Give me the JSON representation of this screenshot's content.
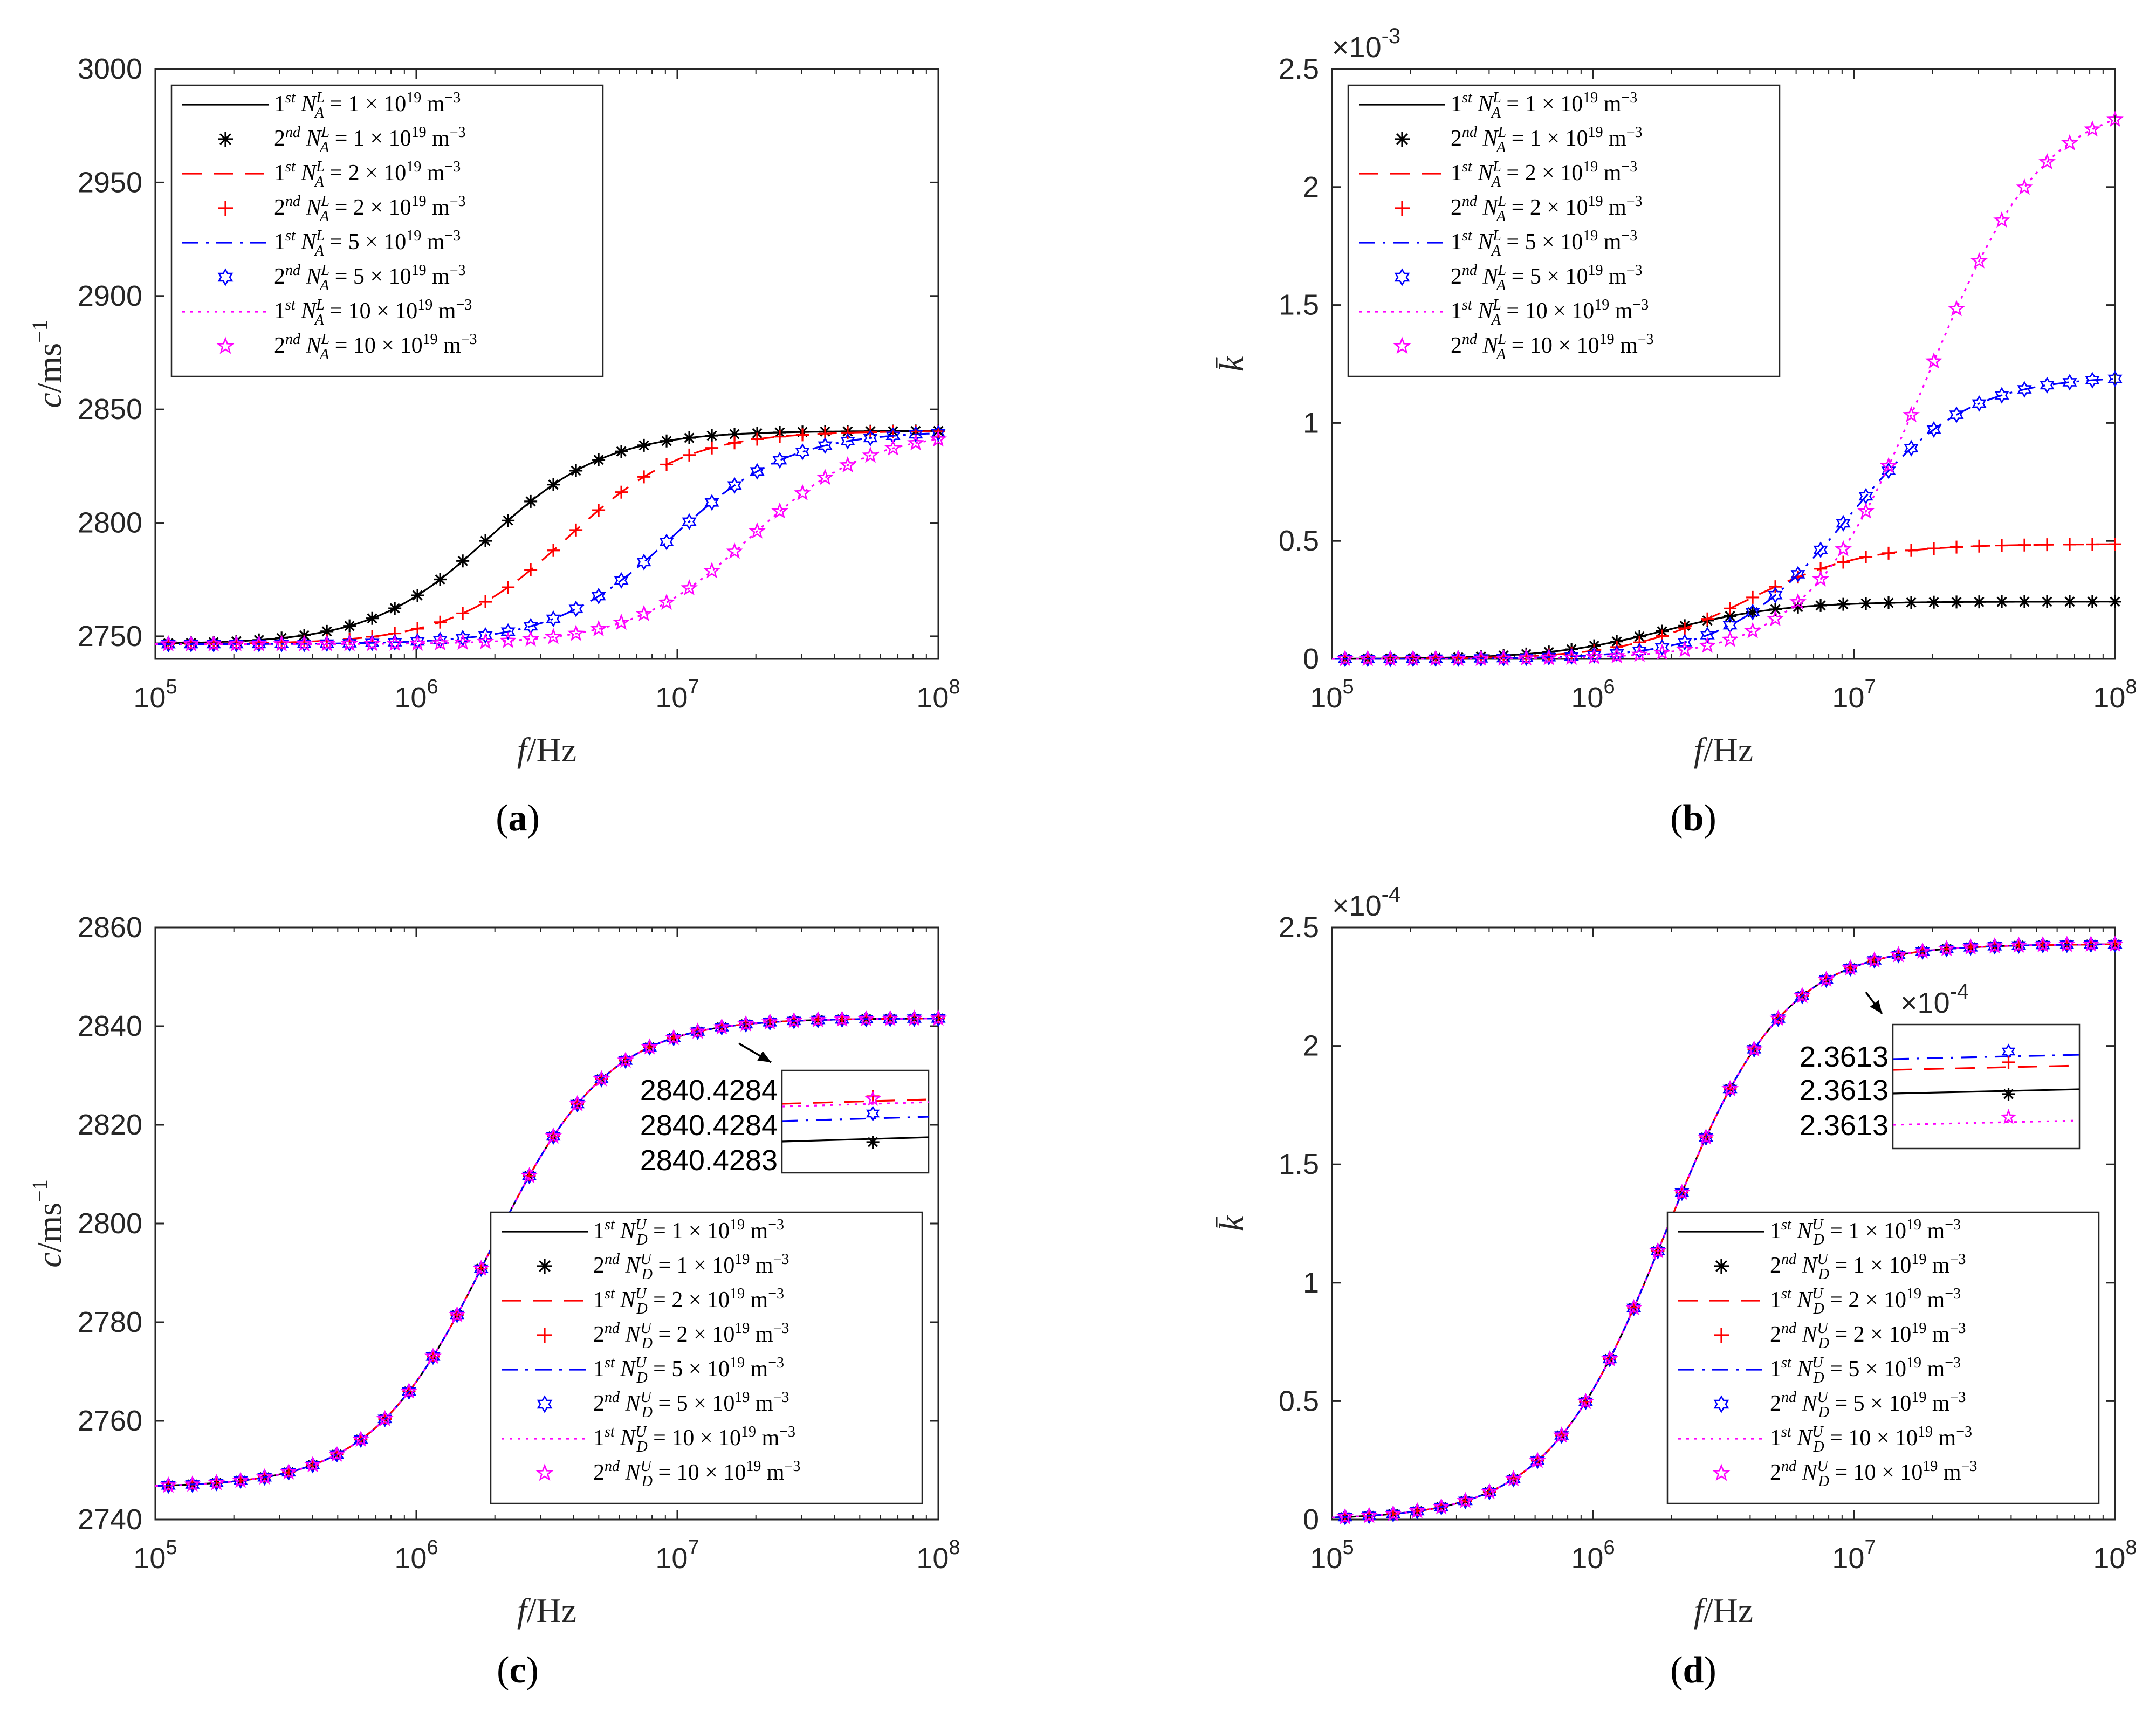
{
  "figure": {
    "panel_labels": [
      "(a)",
      "(b)",
      "(c)",
      "(d)"
    ],
    "legend_a": [
      "1st N_A^L = 1 × 10^19 m^-3",
      "2nd N_A^L = 1 × 10^19 m^-3",
      "1st N_A^L = 2 × 10^19 m^-3",
      "2nd N_A^L = 2 × 10^19 m^-3",
      "1st N_A^L = 5 × 10^19 m^-3",
      "2nd N_A^L = 5 × 10^19 m^-3",
      "1st N_A^L = 10 × 10^19 m^-3",
      "2nd N_A^L = 10 × 10^19 m^-3"
    ],
    "legend_d": [
      "1st N_D^U = 1 × 10^19 m^-3",
      "2nd N_D^U = 1 × 10^19 m^-3",
      "1st N_D^U = 2 × 10^19 m^-3",
      "2nd N_D^U = 2 × 10^19 m^-3",
      "1st N_D^U = 5 × 10^19 m^-3",
      "2nd N_D^U = 5 × 10^19 m^-3",
      "1st N_D^U = 10 × 10^19 m^-3",
      "2nd N_D^U = 10 × 10^19 m^-3"
    ],
    "colors": {
      "black": "#000000",
      "red": "#ff0000",
      "blue": "#0000ff",
      "magenta": "#ff00ff"
    }
  },
  "chart_data": [
    {
      "id": "a",
      "type": "line",
      "xlabel": "f/Hz",
      "ylabel": "c/ms^-1",
      "xscale": "log",
      "xlim": [
        100000,
        100000000
      ],
      "ylim": [
        2740,
        3000
      ],
      "yticks": [
        2750,
        2800,
        2850,
        2900,
        2950,
        3000
      ],
      "ytick_labels": [
        "2750",
        "2800",
        "2850",
        "2900",
        "2950",
        "3000"
      ],
      "xtick_labels": [
        "10^5",
        "10^6",
        "10^7",
        "10^8"
      ],
      "exponent_label": "",
      "legend": "legend_a",
      "legend_position": "top-left",
      "series": [
        {
          "name": "N_A^L = 1 × 10^19",
          "color": "#000000",
          "line": "solid",
          "marker": "asterisk",
          "f0": 1900000,
          "ymin": 2746.5,
          "ymax": 2840.5
        },
        {
          "name": "N_A^L = 2 × 10^19",
          "color": "#ff0000",
          "line": "dashed",
          "marker": "plus",
          "f0": 3800000,
          "ymin": 2746.5,
          "ymax": 2840.5
        },
        {
          "name": "N_A^L = 5 × 10^19",
          "color": "#0000ff",
          "line": "dashdot",
          "marker": "hexagram",
          "f0": 9500000,
          "ymin": 2746.5,
          "ymax": 2840.5
        },
        {
          "name": "N_A^L = 10 × 10^19",
          "color": "#ff00ff",
          "line": "dotted",
          "marker": "pentagram",
          "f0": 19000000,
          "ymin": 2746.5,
          "ymax": 2840.5
        }
      ]
    },
    {
      "id": "b",
      "type": "line",
      "xlabel": "f/Hz",
      "ylabel": "k̄",
      "xscale": "log",
      "xlim": [
        100000,
        100000000
      ],
      "ylim": [
        0,
        0.0025
      ],
      "yticks": [
        0,
        0.0005,
        0.001,
        0.0015,
        0.002,
        0.0025
      ],
      "ytick_labels": [
        "0",
        "0.5",
        "1",
        "1.5",
        "2",
        "2.5"
      ],
      "xtick_labels": [
        "10^5",
        "10^6",
        "10^7",
        "10^8"
      ],
      "exponent_label": "×10^-3",
      "legend": "legend_a",
      "legend_position": "top-left",
      "series": [
        {
          "name": "N_A^L = 1 × 10^19",
          "color": "#000000",
          "line": "solid",
          "marker": "asterisk",
          "f0": 1900000,
          "ymin": 0,
          "ymax": 0.000243
        },
        {
          "name": "N_A^L = 2 × 10^19",
          "color": "#ff0000",
          "line": "dashed",
          "marker": "plus",
          "f0": 3800000,
          "ymin": 0,
          "ymax": 0.000487
        },
        {
          "name": "N_A^L = 5 × 10^19",
          "color": "#0000ff",
          "line": "dashdot",
          "marker": "hexagram",
          "f0": 9500000,
          "ymin": 0,
          "ymax": 0.0012
        },
        {
          "name": "N_A^L = 10 × 10^19",
          "color": "#ff00ff",
          "line": "dotted",
          "marker": "pentagram",
          "f0": 19000000,
          "ymin": 0,
          "ymax": 0.00238
        }
      ]
    },
    {
      "id": "c",
      "type": "line",
      "xlabel": "f/Hz",
      "ylabel": "c/ms^-1",
      "xscale": "log",
      "xlim": [
        100000,
        100000000
      ],
      "ylim": [
        2740,
        2860
      ],
      "yticks": [
        2740,
        2760,
        2780,
        2800,
        2820,
        2840,
        2860
      ],
      "ytick_labels": [
        "2740",
        "2760",
        "2780",
        "2800",
        "2820",
        "2840",
        "2860"
      ],
      "xtick_labels": [
        "10^5",
        "10^6",
        "10^7",
        "10^8"
      ],
      "exponent_label": "",
      "legend": "legend_d",
      "legend_position": "bottom-right",
      "inset": {
        "labels": [
          "2840.4284",
          "2840.4284",
          "2840.4283"
        ],
        "multiplier": ""
      },
      "series": [
        {
          "name": "N_D^U = 1 × 10^19",
          "color": "#000000",
          "line": "solid",
          "marker": "asterisk",
          "f0": 1900000,
          "ymin": 2746.5,
          "ymax": 2841.6
        },
        {
          "name": "N_D^U = 2 × 10^19",
          "color": "#ff0000",
          "line": "dashed",
          "marker": "plus",
          "f0": 1900000,
          "ymin": 2746.5,
          "ymax": 2841.6
        },
        {
          "name": "N_D^U = 5 × 10^19",
          "color": "#0000ff",
          "line": "dashdot",
          "marker": "hexagram",
          "f0": 1900000,
          "ymin": 2746.5,
          "ymax": 2841.6
        },
        {
          "name": "N_D^U = 10 × 10^19",
          "color": "#ff00ff",
          "line": "dotted",
          "marker": "pentagram",
          "f0": 1900000,
          "ymin": 2746.5,
          "ymax": 2841.6
        }
      ]
    },
    {
      "id": "d",
      "type": "line",
      "xlabel": "f/Hz",
      "ylabel": "k̄",
      "xscale": "log",
      "xlim": [
        100000,
        100000000
      ],
      "ylim": [
        0,
        0.00025
      ],
      "yticks": [
        0,
        5e-05,
        0.0001,
        0.00015,
        0.0002,
        0.00025
      ],
      "ytick_labels": [
        "0",
        "0.5",
        "1",
        "1.5",
        "2",
        "2.5"
      ],
      "xtick_labels": [
        "10^5",
        "10^6",
        "10^7",
        "10^8"
      ],
      "exponent_label": "×10^-4",
      "legend": "legend_d",
      "legend_position": "bottom-right",
      "inset": {
        "labels": [
          "2.3613",
          "2.3613",
          "2.3613"
        ],
        "multiplier": "×10^-4"
      },
      "series": [
        {
          "name": "N_D^U = 1 × 10^19",
          "color": "#000000",
          "line": "solid",
          "marker": "asterisk",
          "f0": 1900000,
          "ymin": 0,
          "ymax": 0.000243
        },
        {
          "name": "N_D^U = 2 × 10^19",
          "color": "#ff0000",
          "line": "dashed",
          "marker": "plus",
          "f0": 1900000,
          "ymin": 0,
          "ymax": 0.000243
        },
        {
          "name": "N_D^U = 5 × 10^19",
          "color": "#0000ff",
          "line": "dashdot",
          "marker": "hexagram",
          "f0": 1900000,
          "ymin": 0,
          "ymax": 0.000243
        },
        {
          "name": "N_D^U = 10 × 10^19",
          "color": "#ff00ff",
          "line": "dotted",
          "marker": "pentagram",
          "f0": 1900000,
          "ymin": 0,
          "ymax": 0.000243
        }
      ]
    }
  ]
}
